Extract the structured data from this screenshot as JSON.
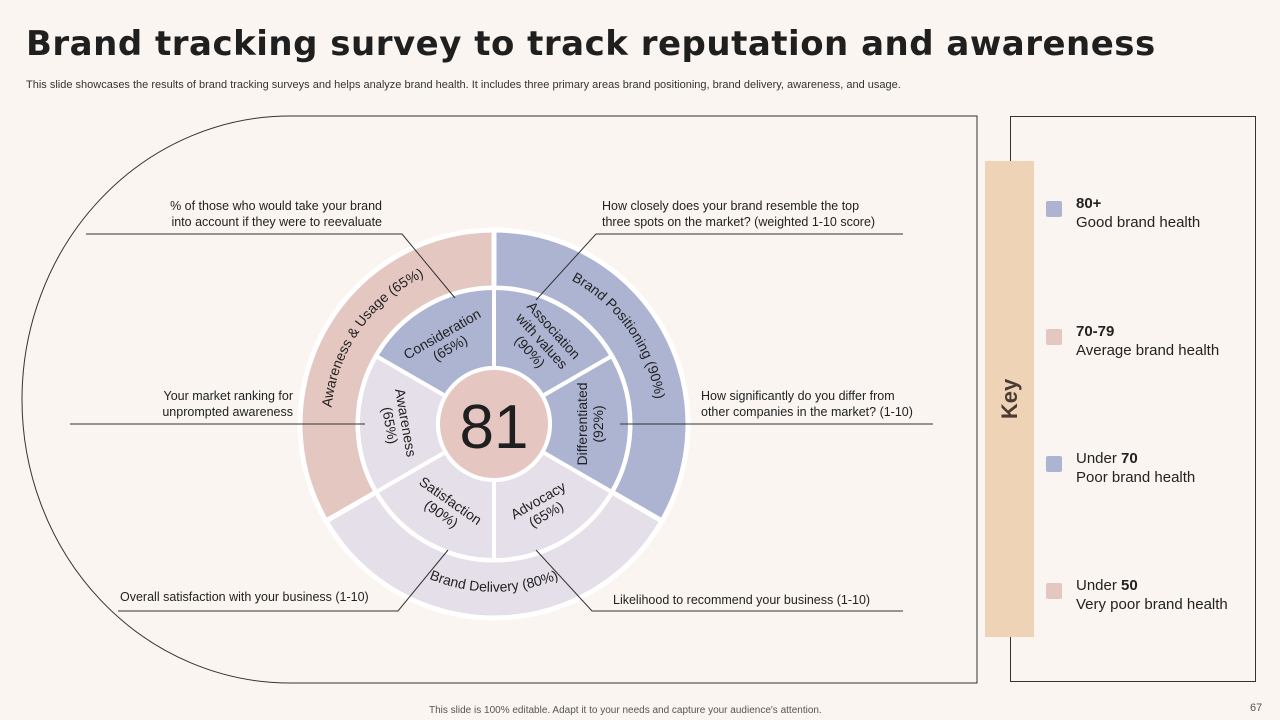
{
  "title": "Brand tracking survey to track reputation and awareness",
  "subtitle": "This slide showcases the results of brand tracking surveys and helps analyze brand health. It includes three primary areas brand positioning, brand delivery, awareness, and usage.",
  "center_score": "81",
  "outer_segments": [
    {
      "label": "Brand Positioning (90%)",
      "color": "#adb4d2"
    },
    {
      "label": "Brand Delivery (80%)",
      "color": "#e4dfe8"
    },
    {
      "label": "Awareness & Usage (65%)",
      "color": "#e5c7c2"
    }
  ],
  "inner_segments": [
    {
      "lines": [
        "Association",
        "with values",
        "(90%)"
      ],
      "color": "#adb4d2"
    },
    {
      "lines": [
        "Differentiated",
        "(92%)"
      ],
      "color": "#adb4d2"
    },
    {
      "lines": [
        "Advocacy",
        "(65%)"
      ],
      "color": "#e4dfe8"
    },
    {
      "lines": [
        "Satisfaction",
        "(90%)"
      ],
      "color": "#e4dfe8"
    },
    {
      "lines": [
        "Awareness",
        "(65%)"
      ],
      "color": "#e4dfe8"
    },
    {
      "lines": [
        "Consideration",
        "(65%)"
      ],
      "color": "#adb4d2"
    }
  ],
  "annotations": {
    "consideration": [
      "% of those who would take your brand",
      "into account if they were to reevaluate"
    ],
    "association": [
      "How closely does your brand resemble the top",
      "three spots on the market? (weighted 1-10 score)"
    ],
    "awareness": [
      "Your market ranking for",
      "unprompted awareness"
    ],
    "differentiated": [
      "How significantly do you differ from",
      "other companies in the market? (1-10)"
    ],
    "satisfaction": [
      "Overall satisfaction with your business (1-10)"
    ],
    "advocacy": [
      "Likelihood to recommend your business (1-10)"
    ]
  },
  "legend": {
    "title": "Key",
    "items": [
      {
        "prefix": "",
        "value": "80+",
        "description": "Good brand health",
        "color": "#adb4d2"
      },
      {
        "prefix": "",
        "value": "70-79",
        "description": "Average brand health",
        "color": "#e5c7c2"
      },
      {
        "prefix": "Under ",
        "value": "70",
        "description": "Poor brand health",
        "color": "#adb4d2"
      },
      {
        "prefix": "Under ",
        "value": "50",
        "description": "Very poor brand health",
        "color": "#e5c7c2"
      }
    ]
  },
  "footer": "This slide is 100% editable. Adapt it to your needs and capture your audience's attention.",
  "page_number": "67",
  "colors": {
    "accent_blue": "#adb4d2",
    "accent_pink": "#e5c7c2",
    "accent_lavender": "#e4dfe8",
    "center_circle": "#e6c6c1",
    "key_bar": "#efd3b7",
    "background": "#faf5f0"
  }
}
